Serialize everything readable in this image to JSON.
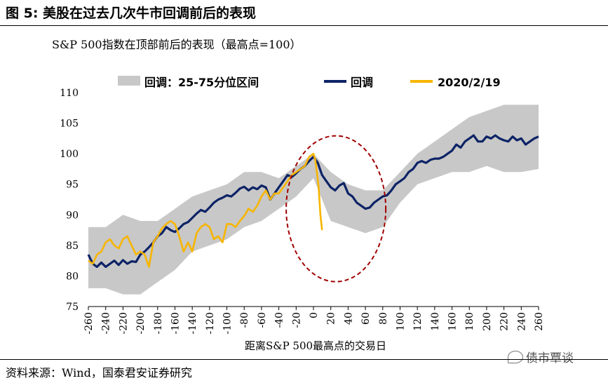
{
  "figure": {
    "title": "图 5:  美股在过去几次牛市回调前后的表现",
    "source": "资料来源：Wind，国泰君安证券研究",
    "brand": "债市覃谈"
  },
  "chart_data": {
    "type": "line",
    "title": "S&P 500指数在顶部前后的表现（最高点=100）",
    "xlabel": "距离S&P 500最高点的交易日",
    "ylabel": "",
    "xlim": [
      -260,
      260
    ],
    "ylim": [
      75,
      110
    ],
    "xticks": [
      -260,
      -240,
      -220,
      -200,
      -180,
      -160,
      -140,
      -120,
      -100,
      -80,
      -60,
      -40,
      -20,
      0,
      20,
      40,
      60,
      80,
      100,
      120,
      140,
      160,
      180,
      200,
      220,
      240,
      260
    ],
    "yticks": [
      75,
      80,
      85,
      90,
      95,
      100,
      105,
      110
    ],
    "legend": [
      "回调：25-75分位区间",
      "回调",
      "2020/2/19"
    ],
    "colors": {
      "band": "#c8c8c8",
      "median": "#0d2366",
      "current": "#f7b500",
      "circle": "#a00000"
    },
    "band": {
      "name": "回调：25-75分位区间",
      "x": [
        -260,
        -240,
        -220,
        -200,
        -180,
        -160,
        -140,
        -120,
        -100,
        -80,
        -60,
        -40,
        -20,
        0,
        20,
        40,
        60,
        80,
        100,
        120,
        140,
        160,
        180,
        200,
        220,
        240,
        260
      ],
      "lower": [
        78,
        78,
        77,
        77,
        79,
        81,
        84,
        85,
        86,
        88,
        89,
        91,
        93,
        96,
        89,
        88,
        87,
        88,
        92,
        95,
        96,
        97,
        97,
        98,
        97,
        97,
        97.5
      ],
      "upper": [
        88,
        88,
        90,
        89,
        89,
        91,
        93,
        94,
        95,
        97,
        97,
        96,
        98,
        100,
        97,
        95,
        94,
        94,
        97,
        100,
        102,
        104,
        106,
        107,
        108,
        108,
        108
      ]
    },
    "series": [
      {
        "name": "回调",
        "x": [
          -260,
          -255,
          -250,
          -245,
          -240,
          -235,
          -230,
          -225,
          -220,
          -215,
          -210,
          -205,
          -200,
          -195,
          -190,
          -185,
          -180,
          -175,
          -170,
          -165,
          -160,
          -155,
          -150,
          -145,
          -140,
          -135,
          -130,
          -125,
          -120,
          -115,
          -110,
          -105,
          -100,
          -95,
          -90,
          -85,
          -80,
          -75,
          -70,
          -65,
          -60,
          -55,
          -50,
          -45,
          -40,
          -35,
          -30,
          -25,
          -20,
          -15,
          -10,
          -5,
          0,
          5,
          10,
          15,
          20,
          25,
          30,
          35,
          40,
          45,
          50,
          55,
          60,
          65,
          70,
          75,
          80,
          85,
          90,
          95,
          100,
          105,
          110,
          115,
          120,
          125,
          130,
          135,
          140,
          145,
          150,
          155,
          160,
          165,
          170,
          175,
          180,
          185,
          190,
          195,
          200,
          205,
          210,
          215,
          220,
          225,
          230,
          235,
          240,
          245,
          250,
          255,
          260
        ],
        "values": [
          83.5,
          82,
          81.5,
          82.2,
          81.5,
          82,
          82.5,
          81.8,
          82.6,
          82,
          82.4,
          82.3,
          83.5,
          84,
          84.7,
          85.5,
          86.5,
          87,
          88,
          87.5,
          87.2,
          87.8,
          88.5,
          88.8,
          89.5,
          90.2,
          90.8,
          90.5,
          91.2,
          92,
          92.5,
          92.8,
          93.2,
          93,
          93.6,
          94.3,
          94.6,
          94,
          94.5,
          94.2,
          94.8,
          94.5,
          92.5,
          93.5,
          94.5,
          95.5,
          96.5,
          96.2,
          96.8,
          97.5,
          98,
          98.8,
          99.5,
          98.5,
          96.5,
          95.5,
          94.5,
          94,
          94.8,
          95.2,
          93.5,
          93,
          92,
          91.5,
          91,
          91.2,
          92,
          92.5,
          93,
          93.2,
          94,
          95,
          95.5,
          96,
          97,
          97.5,
          98.5,
          98.8,
          98.5,
          99,
          99.2,
          99.2,
          99.5,
          100,
          100.5,
          101.5,
          101,
          102,
          102.5,
          103,
          102,
          102,
          102.8,
          102.5,
          103,
          102.5,
          102.2,
          102,
          102.8,
          102.2,
          102.5,
          101.5,
          102,
          102.5,
          102.8
        ]
      },
      {
        "name": "2020/2/19",
        "x": [
          -260,
          -255,
          -250,
          -245,
          -240,
          -235,
          -230,
          -225,
          -220,
          -215,
          -210,
          -205,
          -200,
          -195,
          -190,
          -185,
          -180,
          -175,
          -170,
          -165,
          -160,
          -155,
          -150,
          -145,
          -140,
          -135,
          -130,
          -125,
          -120,
          -115,
          -110,
          -105,
          -100,
          -95,
          -90,
          -85,
          -80,
          -75,
          -70,
          -65,
          -60,
          -55,
          -50,
          -45,
          -40,
          -35,
          -30,
          -25,
          -20,
          -15,
          -10,
          -5,
          0,
          2,
          4,
          6,
          8,
          10
        ],
        "values": [
          82.5,
          82,
          83.5,
          84,
          85.5,
          86,
          85,
          84.5,
          86,
          86.5,
          85,
          83.5,
          84,
          83.5,
          81.5,
          85.5,
          86.5,
          87.8,
          88.5,
          89,
          88.5,
          86.5,
          84,
          85.5,
          84,
          87,
          88,
          88.5,
          88,
          86,
          86.5,
          85.5,
          88.5,
          88.5,
          88,
          89,
          89.8,
          91,
          90.5,
          91.5,
          93,
          94,
          92.5,
          93.5,
          93.5,
          94.5,
          95.5,
          96.5,
          97,
          97.5,
          98,
          99.5,
          100,
          99,
          97,
          94.5,
          90,
          87.5
        ]
      }
    ]
  }
}
